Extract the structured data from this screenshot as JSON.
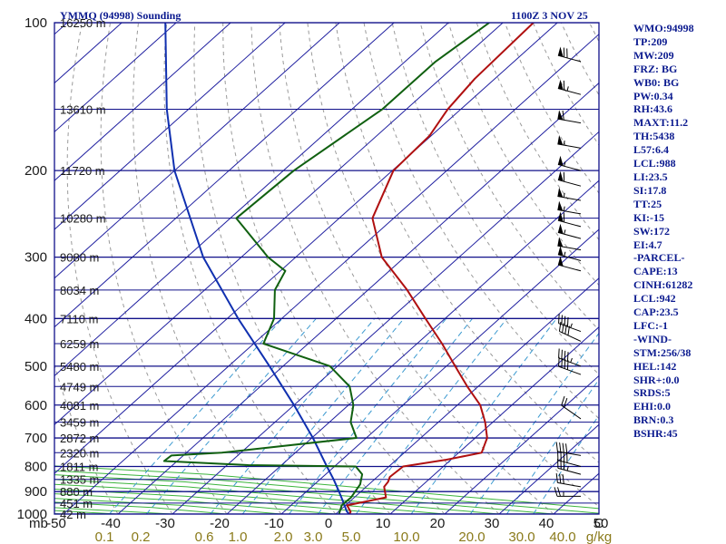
{
  "header": {
    "title": "YMMQ (94998) Sounding",
    "valid": "1100Z  3 NOV 25"
  },
  "colors": {
    "isobar": "#10108a",
    "isotherm": "#2020a0",
    "dry_adiabat": "#3cb43c",
    "moist_adiabat": "#3cb43c",
    "mixing_ratio": "#3c9ad0",
    "dry_adiabat_dash": "#9a9a9a",
    "temperature": "#b01010",
    "dewpoint": "#106010",
    "parcel": "#1030b0",
    "text": "#0b1a8f",
    "wind": "#000000"
  },
  "stats": [
    "WMO:94998",
    "TP:209",
    "MW:209",
    "FRZ: BG",
    "WB0: BG",
    "PW:0.34",
    "RH:43.6",
    "MAXT:11.2",
    "TH:5438",
    "L57:6.4",
    "LCL:988",
    "LI:23.5",
    "SI:17.8",
    "TT:25",
    "KI:-15",
    "SW:172",
    "EI:4.7",
    "-PARCEL-",
    "CAPE:13",
    "CINH:61282",
    "LCL:942",
    "CAP:23.5",
    "LFC:-1",
    "-WIND-",
    "STM:256/38",
    "HEL:142",
    "SHR+:0.0",
    "SRDS:5",
    "EHI:0.0",
    "BRN:0.3",
    "BSHR:45"
  ],
  "chart_data": {
    "type": "line",
    "subtype": "skew-t log-p",
    "title": "YMMQ (94998) Sounding",
    "xlim": [
      -50,
      50
    ],
    "ylim": [
      1000,
      100
    ],
    "yscale": "log",
    "pressure_labels": [
      "100",
      "200",
      "300",
      "400",
      "500",
      "600",
      "700",
      "800",
      "900",
      "1000"
    ],
    "pressure_unit": "mb",
    "height_labels": [
      {
        "p": 100,
        "label": "16250 m"
      },
      {
        "p": 150,
        "label": "13610 m"
      },
      {
        "p": 200,
        "label": "11720 m"
      },
      {
        "p": 250,
        "label": "10280 m"
      },
      {
        "p": 300,
        "label": "9080 m"
      },
      {
        "p": 350,
        "label": "8034 m"
      },
      {
        "p": 400,
        "label": "7110 m"
      },
      {
        "p": 450,
        "label": "6259 m"
      },
      {
        "p": 500,
        "label": "5480 m"
      },
      {
        "p": 550,
        "label": "4749 m"
      },
      {
        "p": 600,
        "label": "4081 m"
      },
      {
        "p": 650,
        "label": "3459 m"
      },
      {
        "p": 700,
        "label": "2872 m"
      },
      {
        "p": 750,
        "label": "2320 m"
      },
      {
        "p": 800,
        "label": "1811 m"
      },
      {
        "p": 850,
        "label": "1335 m"
      },
      {
        "p": 900,
        "label": "880 m"
      },
      {
        "p": 950,
        "label": "451 m"
      },
      {
        "p": 1000,
        "label": "42 m"
      }
    ],
    "temp_ticks": [
      "-50",
      "-40",
      "-30",
      "-20",
      "-10",
      "0",
      "10",
      "20",
      "30",
      "40",
      "50"
    ],
    "mixing_ratio_ticks": [
      "0.1",
      "0.2",
      "0.6",
      "1.0",
      "2.0",
      "3.0",
      "5.0",
      "10.0",
      "20.0",
      "30.0",
      "40.0"
    ],
    "mixing_ratio_unit": "g/kg",
    "temperature": [
      {
        "p": 1000,
        "t": 2.5
      },
      {
        "p": 990,
        "t": 2.3
      },
      {
        "p": 960,
        "t": 0.3
      },
      {
        "p": 925,
        "t": 5.8
      },
      {
        "p": 880,
        "t": 3.3
      },
      {
        "p": 860,
        "t": 3.0
      },
      {
        "p": 840,
        "t": 2.3
      },
      {
        "p": 800,
        "t": 2.6
      },
      {
        "p": 775,
        "t": 9.2
      },
      {
        "p": 750,
        "t": 14.2
      },
      {
        "p": 700,
        "t": 12.2
      },
      {
        "p": 650,
        "t": 8.6
      },
      {
        "p": 600,
        "t": 4.2
      },
      {
        "p": 550,
        "t": -2.0
      },
      {
        "p": 500,
        "t": -8.4
      },
      {
        "p": 450,
        "t": -15.4
      },
      {
        "p": 400,
        "t": -23.6
      },
      {
        "p": 350,
        "t": -32.8
      },
      {
        "p": 300,
        "t": -44.2
      },
      {
        "p": 250,
        "t": -53.9
      },
      {
        "p": 200,
        "t": -59.8
      },
      {
        "p": 170,
        "t": -60.3
      },
      {
        "p": 150,
        "t": -62.4
      },
      {
        "p": 130,
        "t": -63.7
      },
      {
        "p": 100,
        "t": -64.4
      }
    ],
    "dewpoint": [
      {
        "p": 1000,
        "t": 0.6
      },
      {
        "p": 960,
        "t": -0.7
      },
      {
        "p": 925,
        "t": -0.6
      },
      {
        "p": 870,
        "t": -1.6
      },
      {
        "p": 830,
        "t": -3.3
      },
      {
        "p": 800,
        "t": -6.1
      },
      {
        "p": 795,
        "t": -26.1
      },
      {
        "p": 780,
        "t": -42.4
      },
      {
        "p": 760,
        "t": -42.2
      },
      {
        "p": 750,
        "t": -33.5
      },
      {
        "p": 700,
        "t": -11.8
      },
      {
        "p": 650,
        "t": -16.1
      },
      {
        "p": 600,
        "t": -19.1
      },
      {
        "p": 550,
        "t": -23.6
      },
      {
        "p": 500,
        "t": -31.4
      },
      {
        "p": 450,
        "t": -48.2
      },
      {
        "p": 400,
        "t": -51.4
      },
      {
        "p": 350,
        "t": -57.1
      },
      {
        "p": 320,
        "t": -59.1
      },
      {
        "p": 300,
        "t": -65.1
      },
      {
        "p": 250,
        "t": -78.9
      },
      {
        "p": 200,
        "t": -78.1
      },
      {
        "p": 150,
        "t": -74.4
      },
      {
        "p": 120,
        "t": -74.4
      },
      {
        "p": 100,
        "t": -72.5
      }
    ],
    "parcel": [
      {
        "p": 1000,
        "t": 2.5
      },
      {
        "p": 988,
        "t": 1.5
      },
      {
        "p": 942,
        "t": -1.3
      },
      {
        "p": 900,
        "t": -4.0
      },
      {
        "p": 850,
        "t": -7.5
      },
      {
        "p": 800,
        "t": -11.4
      },
      {
        "p": 700,
        "t": -19.8
      },
      {
        "p": 600,
        "t": -30.0
      },
      {
        "p": 500,
        "t": -42.5
      },
      {
        "p": 400,
        "t": -58.0
      },
      {
        "p": 300,
        "t": -77.0
      },
      {
        "p": 200,
        "t": -100.0
      },
      {
        "p": 150,
        "t": -114.0
      },
      {
        "p": 100,
        "t": -132.0
      }
    ],
    "wind_barbs": [
      {
        "p": 100,
        "dir": 300,
        "spd": 65
      },
      {
        "p": 120,
        "dir": 285,
        "spd": 70
      },
      {
        "p": 140,
        "dir": 285,
        "spd": 65
      },
      {
        "p": 160,
        "dir": 280,
        "spd": 60
      },
      {
        "p": 180,
        "dir": 280,
        "spd": 55
      },
      {
        "p": 200,
        "dir": 285,
        "spd": 55
      },
      {
        "p": 215,
        "dir": 285,
        "spd": 60
      },
      {
        "p": 230,
        "dir": 280,
        "spd": 55
      },
      {
        "p": 245,
        "dir": 280,
        "spd": 55
      },
      {
        "p": 260,
        "dir": 285,
        "spd": 60
      },
      {
        "p": 275,
        "dir": 285,
        "spd": 55
      },
      {
        "p": 290,
        "dir": 280,
        "spd": 50
      },
      {
        "p": 305,
        "dir": 285,
        "spd": 55
      },
      {
        "p": 320,
        "dir": 285,
        "spd": 50
      },
      {
        "p": 425,
        "dir": 290,
        "spd": 45
      },
      {
        "p": 445,
        "dir": 295,
        "spd": 40
      },
      {
        "p": 500,
        "dir": 290,
        "spd": 45
      },
      {
        "p": 520,
        "dir": 290,
        "spd": 40
      },
      {
        "p": 640,
        "dir": 305,
        "spd": 20
      },
      {
        "p": 760,
        "dir": 280,
        "spd": 40
      },
      {
        "p": 800,
        "dir": 285,
        "spd": 40
      },
      {
        "p": 830,
        "dir": 285,
        "spd": 35
      },
      {
        "p": 880,
        "dir": 280,
        "spd": 30
      },
      {
        "p": 920,
        "dir": 270,
        "spd": 25
      }
    ],
    "grid": true
  }
}
